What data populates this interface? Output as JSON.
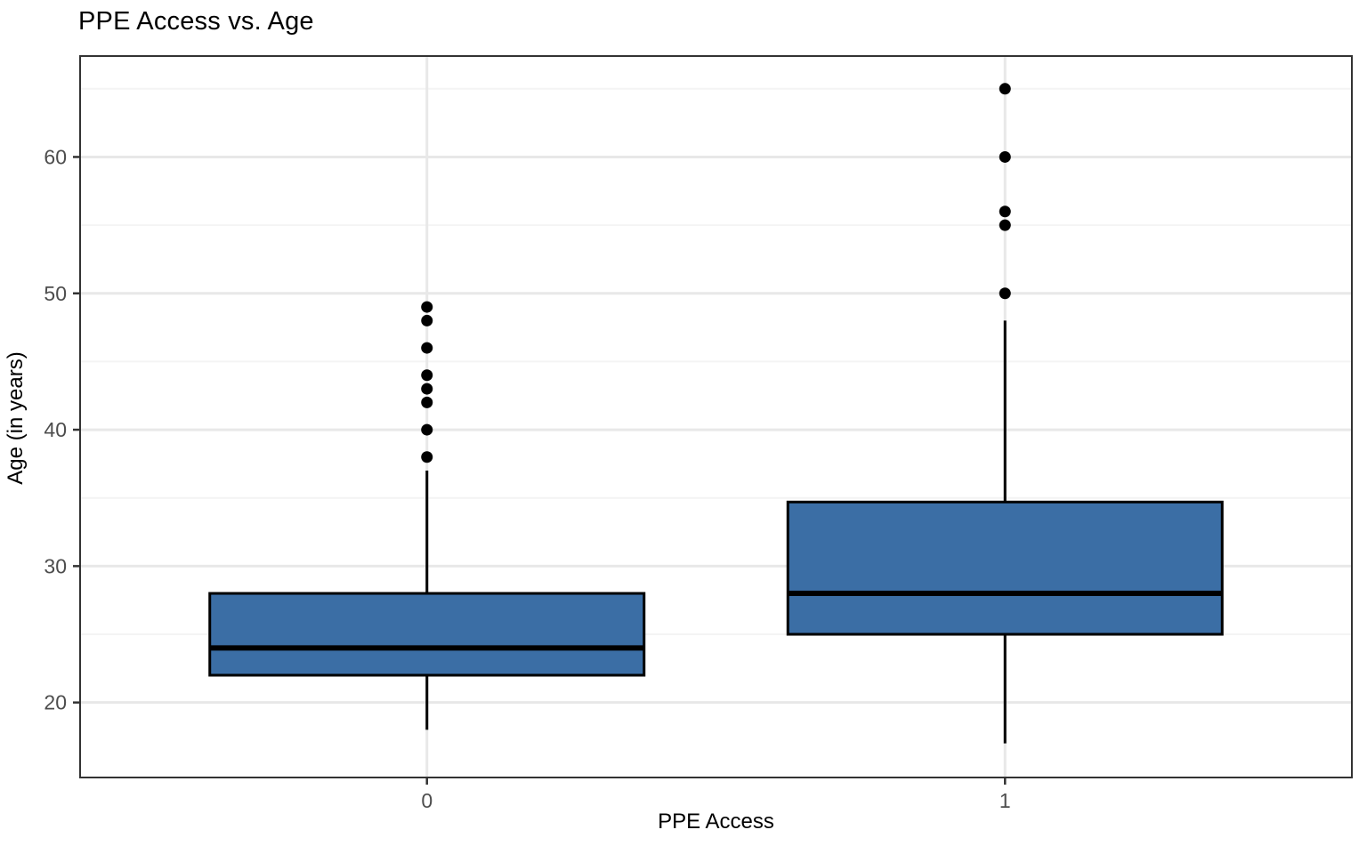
{
  "chart_data": {
    "type": "boxplot",
    "title": "PPE Access vs. Age",
    "xlabel": "PPE Access",
    "ylabel": "Age (in years)",
    "categories": [
      "0",
      "1"
    ],
    "y_ticks": [
      20,
      30,
      40,
      50,
      60
    ],
    "y_minor_ticks": [
      25,
      35,
      45,
      55,
      65
    ],
    "ylim": [
      14.5,
      67.4
    ],
    "grid": "on",
    "legend": "none",
    "series": [
      {
        "category": "0",
        "whisker_low": 18,
        "q1": 22,
        "median": 24,
        "q3": 28,
        "whisker_high": 37,
        "outliers": [
          38,
          40,
          42,
          43,
          44,
          46,
          48,
          49
        ]
      },
      {
        "category": "1",
        "whisker_low": 17,
        "q1": 25,
        "median": 28,
        "q3": 34.7,
        "whisker_high": 48,
        "outliers": [
          50,
          55,
          56,
          60,
          65
        ]
      }
    ],
    "colors": {
      "box_fill": "#3B6EA5",
      "box_stroke": "#000000",
      "median_stroke": "#000000",
      "whisker_stroke": "#000000",
      "outlier_fill": "#000000",
      "grid_major": "#E8E8E8",
      "grid_minor": "#F4F4F4",
      "panel_border": "#333333",
      "tick_mark": "#333333",
      "tick_label": "#4D4D4D",
      "title_text": "#000000"
    }
  }
}
